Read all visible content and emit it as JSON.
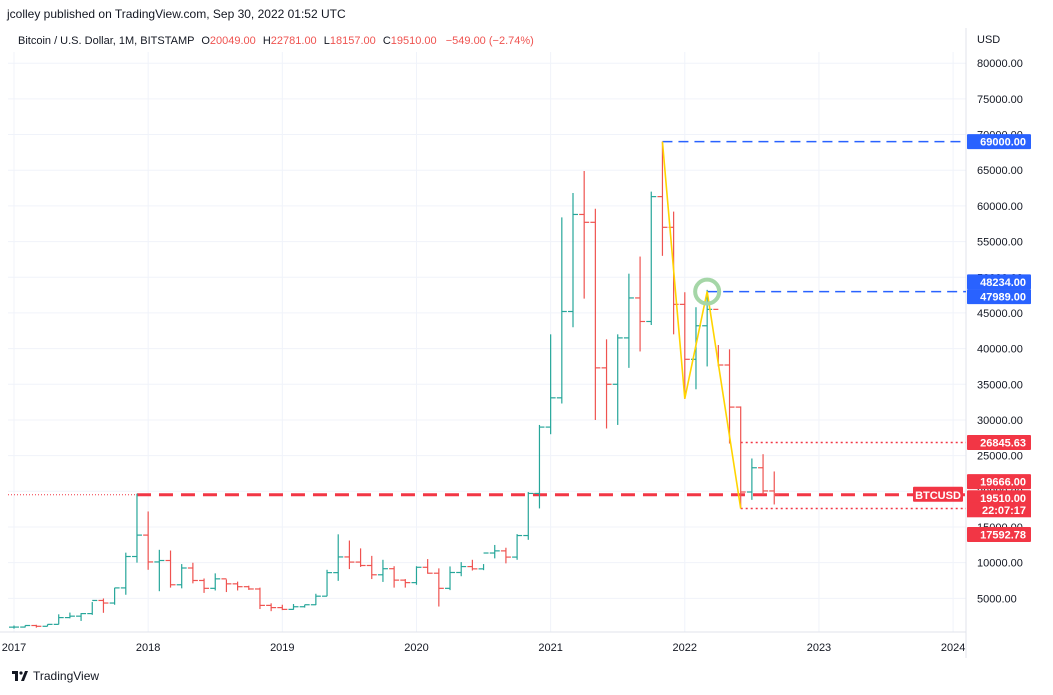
{
  "header": {
    "publisher": "jcolley published on TradingView.com, Sep 30, 2022 01:52 UTC"
  },
  "legend": {
    "symbol": "Bitcoin / U.S. Dollar, 1M, BITSTAMP",
    "o_label": "O",
    "o_value": "20049.00",
    "h_label": "H",
    "h_value": "22781.00",
    "l_label": "L",
    "l_value": "18157.00",
    "c_label": "C",
    "c_value": "19510.00",
    "change": "−549.00 (−2.74%)"
  },
  "currency": "USD",
  "footer": {
    "brand": "TradingView"
  },
  "colors": {
    "up": "#26a69a",
    "down": "#ef5350",
    "blue": "#2962ff",
    "red": "#f23645",
    "yellow": "#ffd400",
    "circle": "#a5d6a7"
  },
  "chart_data": {
    "type": "ohlc",
    "ylim": [
      0,
      82500
    ],
    "xlim": [
      "2017-01",
      "2024-01"
    ],
    "y_ticks": [
      "5000.00",
      "10000.00",
      "15000.00",
      "20000.00",
      "25000.00",
      "30000.00",
      "35000.00",
      "40000.00",
      "45000.00",
      "50000.00",
      "55000.00",
      "60000.00",
      "65000.00",
      "70000.00",
      "75000.00",
      "80000.00"
    ],
    "x_ticks": [
      {
        "label": "2017",
        "x": "2017-01"
      },
      {
        "label": "2018",
        "x": "2018-01"
      },
      {
        "label": "2019",
        "x": "2019-01"
      },
      {
        "label": "2020",
        "x": "2020-01"
      },
      {
        "label": "2021",
        "x": "2021-01"
      },
      {
        "label": "2022",
        "x": "2022-01"
      },
      {
        "label": "2023",
        "x": "2023-01"
      },
      {
        "label": "2024",
        "x": "2024-01"
      }
    ],
    "start": "2017-01",
    "bars": [
      [
        960,
        1190,
        750,
        970
      ],
      [
        970,
        1200,
        920,
        1190
      ],
      [
        1190,
        1290,
        890,
        1080
      ],
      [
        1080,
        1350,
        1080,
        1350
      ],
      [
        1350,
        2760,
        1350,
        2300
      ],
      [
        2300,
        3000,
        2200,
        2500
      ],
      [
        2500,
        2930,
        1830,
        2860
      ],
      [
        2860,
        4480,
        2680,
        4700
      ],
      [
        4700,
        4980,
        2970,
        4340
      ],
      [
        4340,
        6470,
        4100,
        6460
      ],
      [
        6460,
        11400,
        5500,
        10860
      ],
      [
        10860,
        19666,
        10000,
        13860
      ],
      [
        13860,
        17176,
        9000,
        10100
      ],
      [
        10100,
        11800,
        6000,
        10300
      ],
      [
        10300,
        11700,
        6500,
        6900
      ],
      [
        6900,
        9800,
        6400,
        9250
      ],
      [
        9250,
        9990,
        7100,
        7500
      ],
      [
        7500,
        7780,
        5760,
        6400
      ],
      [
        6400,
        8500,
        6100,
        7730
      ],
      [
        7730,
        7650,
        5880,
        7030
      ],
      [
        7030,
        7340,
        6100,
        6630
      ],
      [
        6630,
        6770,
        6180,
        6310
      ],
      [
        6310,
        6500,
        3500,
        4010
      ],
      [
        4010,
        4300,
        3200,
        3700
      ],
      [
        3700,
        4100,
        3350,
        3450
      ],
      [
        3450,
        4200,
        3400,
        3820
      ],
      [
        3820,
        4100,
        3700,
        4100
      ],
      [
        4100,
        5640,
        4050,
        5300
      ],
      [
        5300,
        9000,
        5300,
        8600
      ],
      [
        8600,
        13970,
        7450,
        10800
      ],
      [
        10800,
        13100,
        9100,
        10080
      ],
      [
        10080,
        12000,
        9400,
        9600
      ],
      [
        9600,
        10950,
        7700,
        8300
      ],
      [
        8300,
        10400,
        7300,
        9150
      ],
      [
        9150,
        9500,
        6500,
        7550
      ],
      [
        7550,
        7700,
        6500,
        7200
      ],
      [
        7200,
        9500,
        6900,
        9350
      ],
      [
        9350,
        10500,
        8450,
        8520
      ],
      [
        8520,
        9200,
        3850,
        6400
      ],
      [
        6400,
        9470,
        6150,
        8620
      ],
      [
        8620,
        10080,
        8100,
        9450
      ],
      [
        9450,
        10400,
        8900,
        9130
      ],
      [
        9130,
        9800,
        8950,
        11350
      ],
      [
        11350,
        12480,
        10600,
        11650
      ],
      [
        11650,
        12090,
        9900,
        10780
      ],
      [
        10780,
        14000,
        10400,
        13800
      ],
      [
        13800,
        19900,
        13200,
        19700
      ],
      [
        19700,
        29300,
        17600,
        29000
      ],
      [
        29000,
        42000,
        28000,
        33100
      ],
      [
        33100,
        58400,
        32300,
        45200
      ],
      [
        45200,
        61800,
        43000,
        58800
      ],
      [
        58800,
        64900,
        47000,
        57700
      ],
      [
        57700,
        59600,
        30000,
        37300
      ],
      [
        37300,
        41300,
        28800,
        35000
      ],
      [
        35000,
        42000,
        29300,
        41500
      ],
      [
        41500,
        50500,
        37300,
        47100
      ],
      [
        47100,
        52900,
        39600,
        43800
      ],
      [
        43800,
        62000,
        43300,
        61300
      ],
      [
        61300,
        69000,
        53000,
        57000
      ],
      [
        57000,
        59200,
        42000,
        46200
      ],
      [
        46200,
        47900,
        32950,
        38500
      ],
      [
        38500,
        45800,
        34300,
        43200
      ],
      [
        43200,
        48234,
        37500,
        45500
      ],
      [
        45500,
        40500,
        37500,
        37700
      ],
      [
        37700,
        39900,
        26700,
        31800
      ],
      [
        31800,
        31900,
        17592.78,
        19900
      ],
      [
        19900,
        24600,
        18800,
        23300
      ],
      [
        23300,
        25200,
        19500,
        20050
      ],
      [
        20050,
        22781,
        18157,
        19510
      ]
    ],
    "levels": [
      {
        "price": 69000,
        "label": "69000.00",
        "color": "blue",
        "style": "dashed",
        "from": "2021-11"
      },
      {
        "price": 48234,
        "label": "48234.00",
        "color": "blue",
        "style": "tag"
      },
      {
        "price": 47989,
        "label": "47989.00",
        "color": "blue",
        "style": "dashed",
        "from": "2022-03"
      },
      {
        "price": 26845.63,
        "label": "26845.63",
        "color": "red",
        "style": "dotted",
        "from": "2022-06"
      },
      {
        "price": 19666,
        "label": "19666.00",
        "color": "red",
        "style": "tag"
      },
      {
        "price": 19510,
        "label": "19510.00",
        "color": "red",
        "style": "long-dash",
        "from": "2017-12"
      },
      {
        "price": 17592.78,
        "label": "17592.78",
        "color": "red",
        "style": "dotted",
        "from": "2022-06"
      }
    ],
    "last_price_tag": {
      "symbol": "BTCUSD",
      "countdown": "22:07:17"
    },
    "annotations": {
      "zigzag": [
        [
          "2021-11",
          69000
        ],
        [
          "2022-01",
          33000
        ],
        [
          "2022-03",
          48000
        ],
        [
          "2022-06",
          17592.78
        ]
      ],
      "circle": [
        "2022-03",
        47989
      ]
    }
  }
}
